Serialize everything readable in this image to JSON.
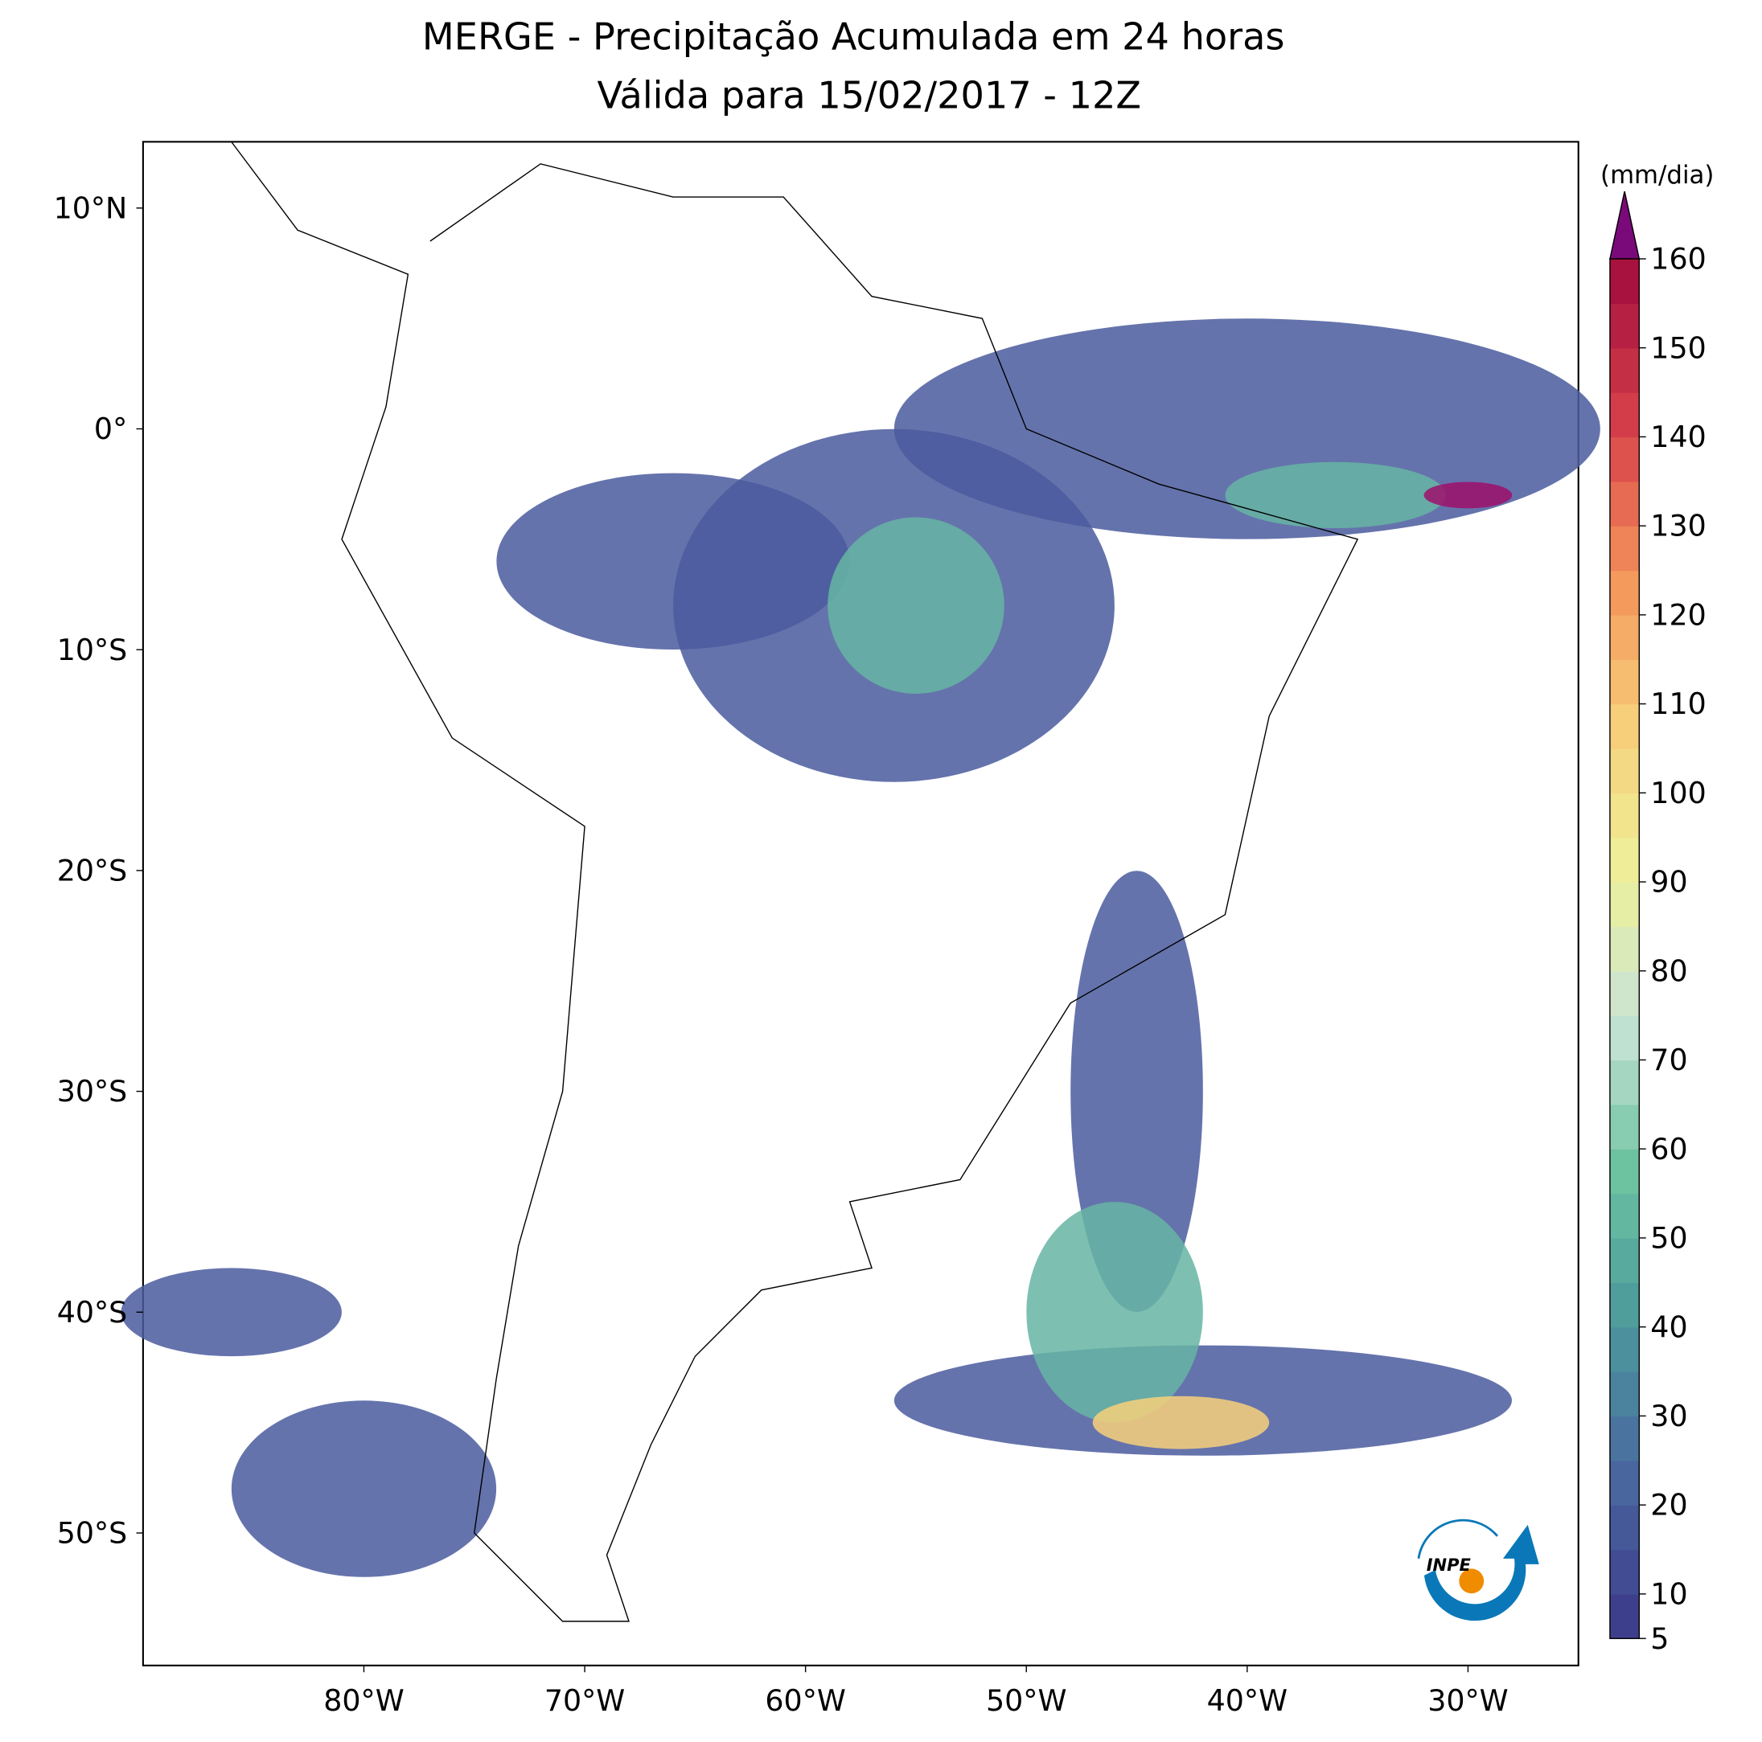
{
  "title": [
    "MERGE - Precipitação Acumulada em 24 horas",
    "Válida para 15/02/2017 - 12Z"
  ],
  "map": {
    "xlim": [
      -90,
      -25
    ],
    "ylim": [
      -56,
      13
    ],
    "xticks": [
      {
        "value": -80,
        "label": "80°W"
      },
      {
        "value": -70,
        "label": "70°W"
      },
      {
        "value": -60,
        "label": "60°W"
      },
      {
        "value": -50,
        "label": "50°W"
      },
      {
        "value": -40,
        "label": "40°W"
      },
      {
        "value": -30,
        "label": "30°W"
      }
    ],
    "yticks": [
      {
        "value": 10,
        "label": "10°N"
      },
      {
        "value": 0,
        "label": "0°"
      },
      {
        "value": -10,
        "label": "10°S"
      },
      {
        "value": -20,
        "label": "20°S"
      },
      {
        "value": -30,
        "label": "30°S"
      },
      {
        "value": -40,
        "label": "40°S"
      },
      {
        "value": -50,
        "label": "50°S"
      }
    ]
  },
  "colorbar": {
    "label": "(mm/dia)",
    "lim": [
      5,
      160
    ],
    "ticks": [
      5,
      10,
      20,
      30,
      40,
      50,
      60,
      70,
      80,
      90,
      100,
      110,
      120,
      130,
      140,
      150,
      160
    ]
  },
  "logo": "INPE"
}
